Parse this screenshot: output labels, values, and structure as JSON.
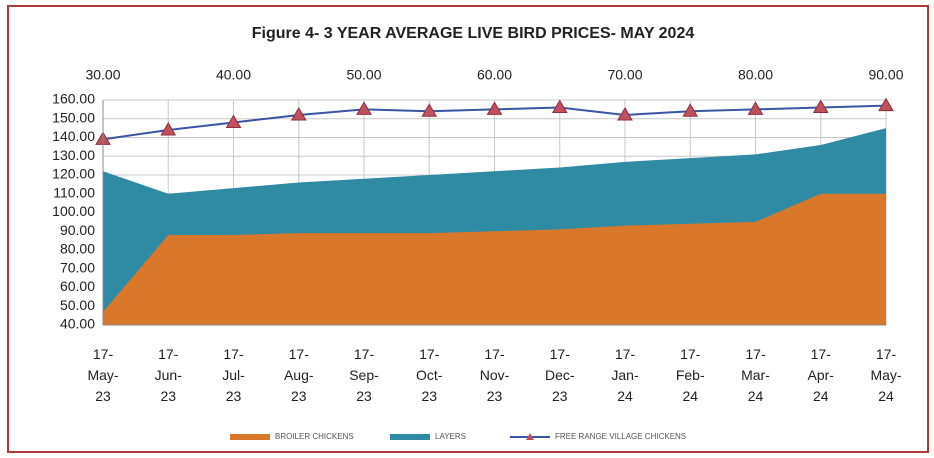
{
  "chart_data": {
    "type": "line",
    "title": "Figure 4- 3 YEAR AVERAGE LIVE BIRD PRICES- MAY 2024",
    "categories": [
      "17-May-23",
      "17-Jun-23",
      "17-Jul-23",
      "17-Aug-23",
      "17-Sep-23",
      "17-Oct-23",
      "17-Nov-23",
      "17-Dec-23",
      "17-Jan-24",
      "17-Feb-24",
      "17-Mar-24",
      "17-Apr-24",
      "17-May-24"
    ],
    "series": [
      {
        "name": "BROILER CHICKENS",
        "color": "#d9782a",
        "style": "area",
        "values": [
          47,
          88,
          88,
          89,
          89,
          89,
          90,
          91,
          93,
          94,
          95,
          110,
          110
        ]
      },
      {
        "name": "LAYERS",
        "color": "#2f8aa3",
        "style": "area",
        "values": [
          122,
          110,
          113,
          116,
          118,
          120,
          122,
          124,
          127,
          129,
          131,
          136,
          145
        ]
      },
      {
        "name": "FREE RANGE VILLAGE CHICKENS",
        "color": "#3a55a4",
        "marker_color": "#c0505a",
        "style": "line",
        "values": [
          139,
          144,
          148,
          152,
          155,
          154,
          155,
          156,
          152,
          154,
          155,
          156,
          157
        ]
      }
    ],
    "ylim": [
      40,
      160
    ],
    "yticks": [
      {
        "value": 40,
        "label": "40.00"
      },
      {
        "value": 50,
        "label": "50.00"
      },
      {
        "value": 60,
        "label": "60.00"
      },
      {
        "value": 70,
        "label": "70.00"
      },
      {
        "value": 80,
        "label": "80.00"
      },
      {
        "value": 90,
        "label": "90.00"
      },
      {
        "value": 100,
        "label": "100.00"
      },
      {
        "value": 110,
        "label": "110.00"
      },
      {
        "value": 120,
        "label": "120.00"
      },
      {
        "value": 130,
        "label": "130.00"
      },
      {
        "value": 140,
        "label": "140.00"
      },
      {
        "value": 150,
        "label": "150.00"
      },
      {
        "value": 160,
        "label": "160.00"
      }
    ],
    "x2lim": [
      30,
      90
    ],
    "x2ticks": [
      {
        "value": 30,
        "label": "30.00"
      },
      {
        "value": 40,
        "label": "40.00"
      },
      {
        "value": 50,
        "label": "50.00"
      },
      {
        "value": 60,
        "label": "60.00"
      },
      {
        "value": 70,
        "label": "70.00"
      },
      {
        "value": 80,
        "label": "80.00"
      },
      {
        "value": 90,
        "label": "90.00"
      }
    ],
    "grid": true,
    "legend": "bottom"
  }
}
